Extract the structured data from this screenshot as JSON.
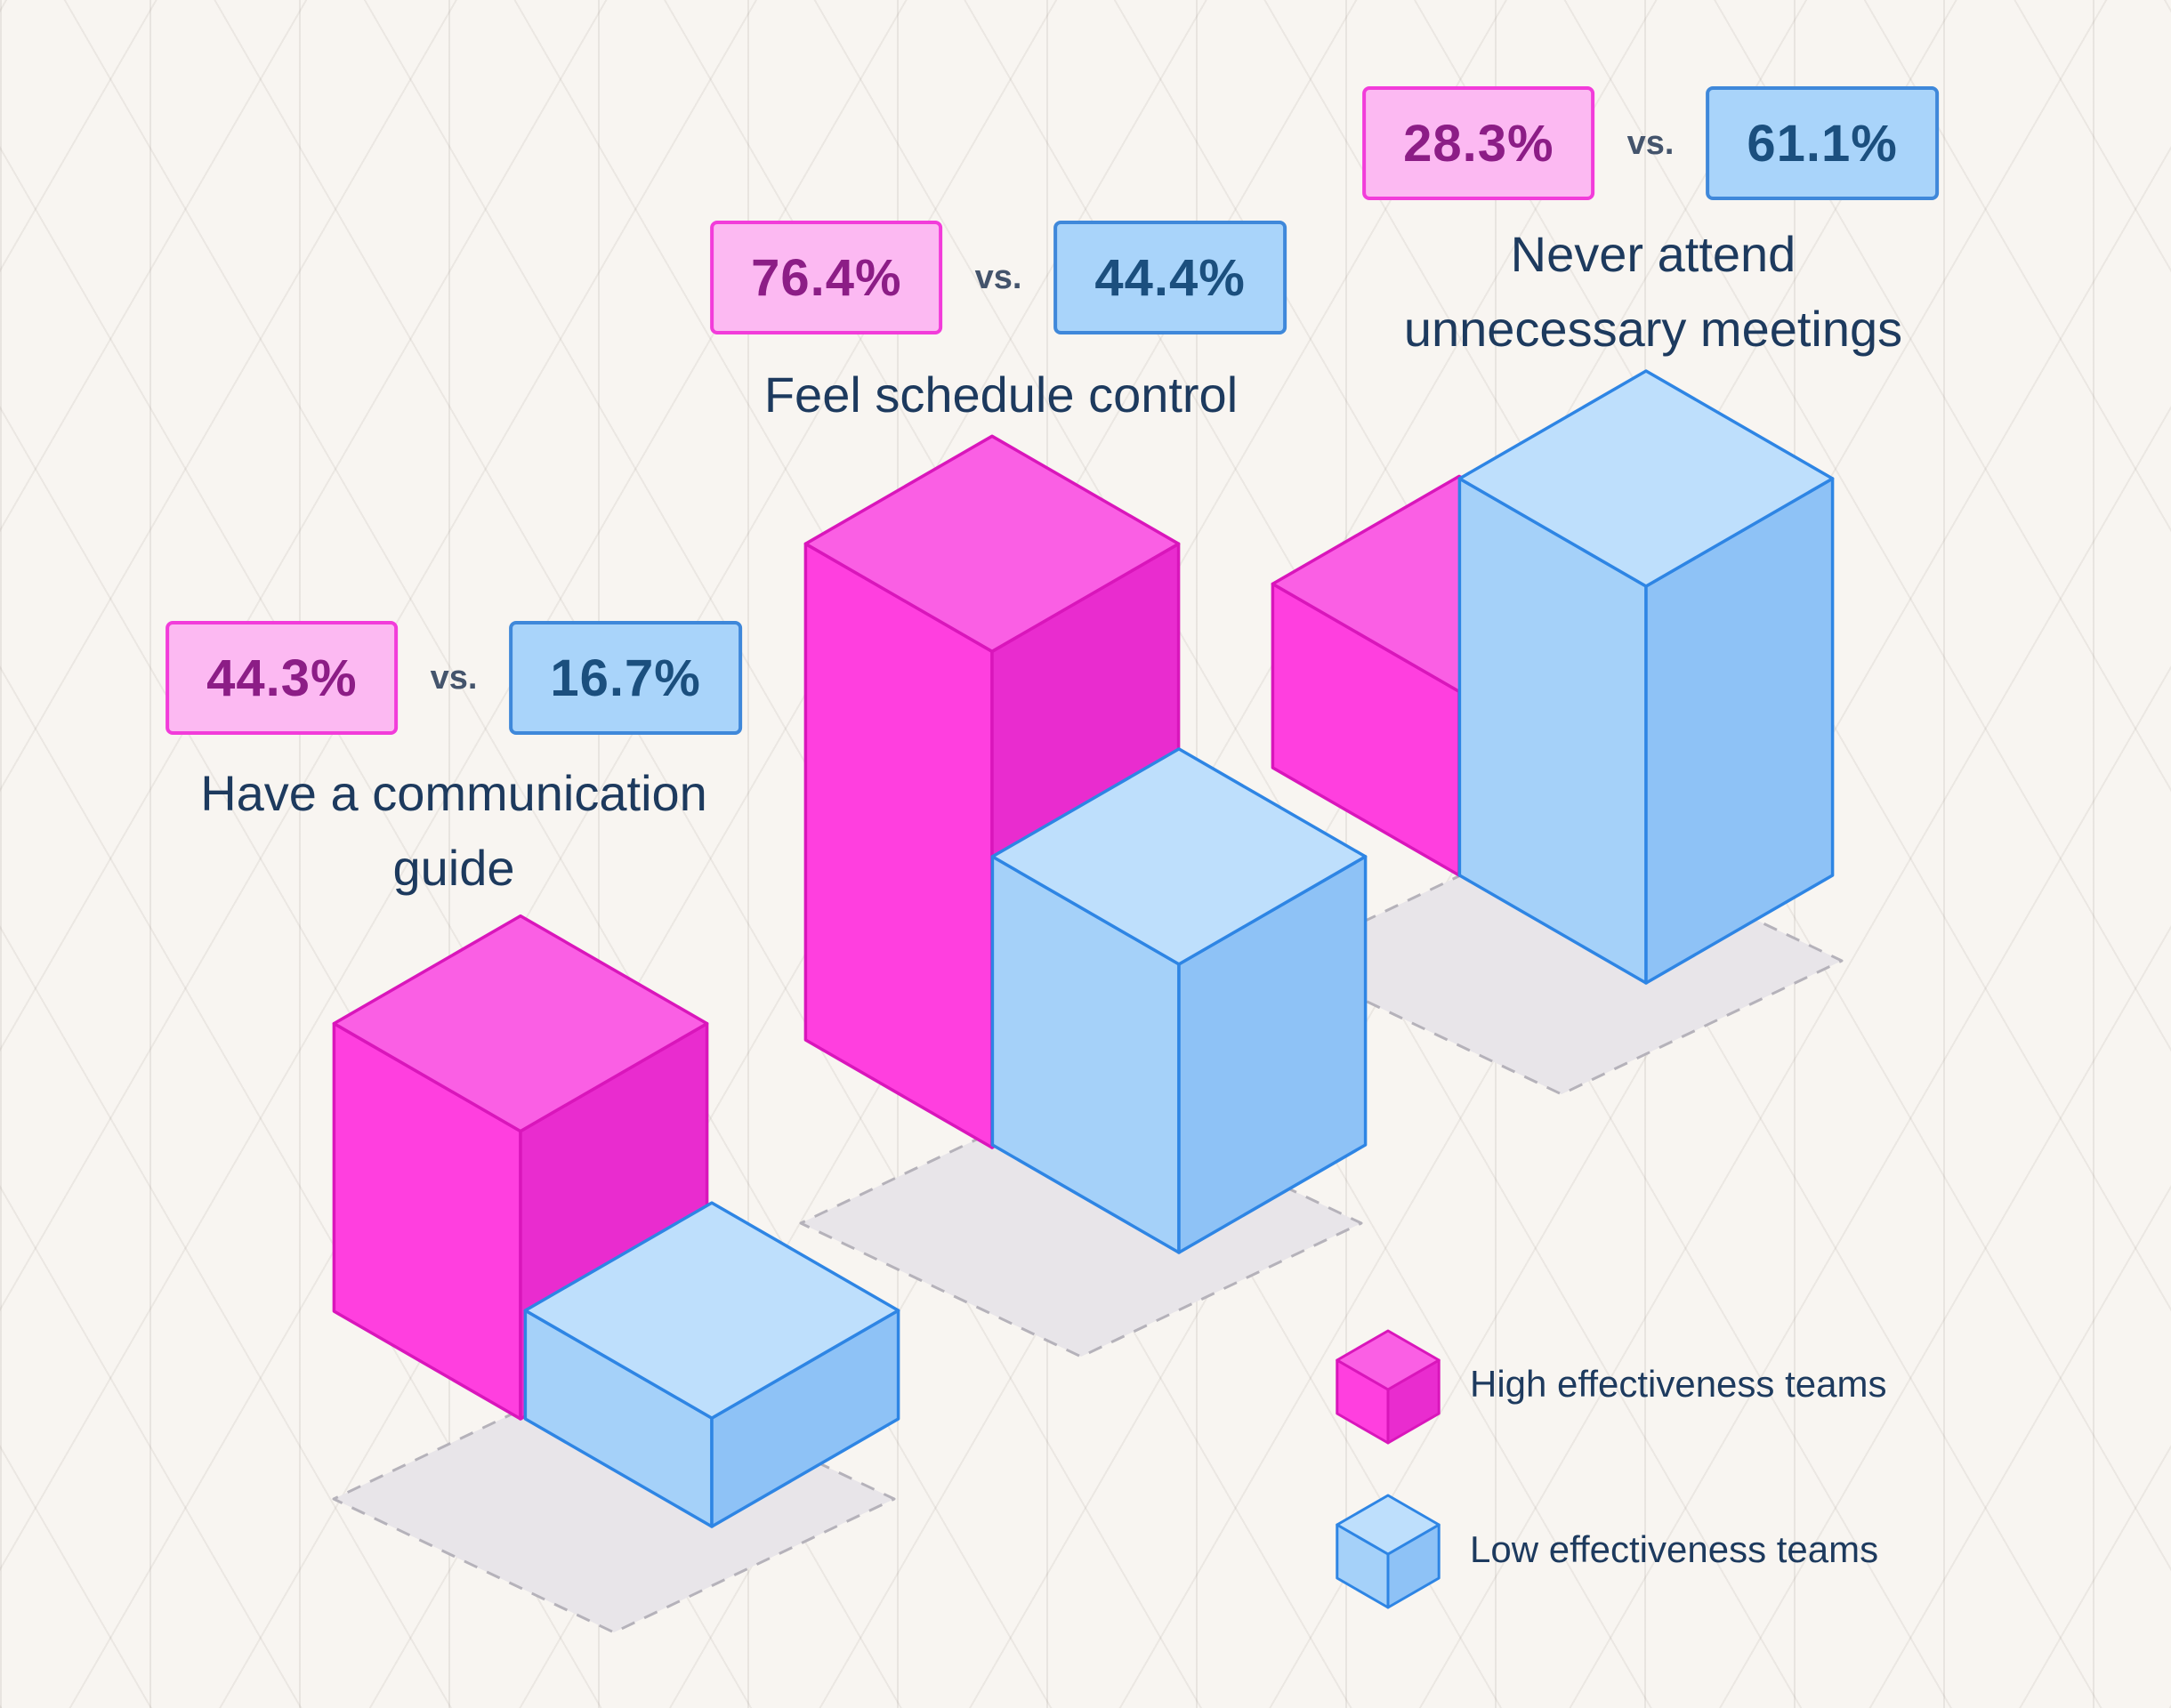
{
  "groups": [
    {
      "high_value": "44.3%",
      "vs": "vs.",
      "low_value": "16.7%",
      "label_lines": [
        "Have a communication",
        "guide"
      ]
    },
    {
      "high_value": "76.4%",
      "vs": "vs.",
      "low_value": "44.4%",
      "label_lines": [
        "Feel schedule control"
      ]
    },
    {
      "high_value": "28.3%",
      "vs": "vs.",
      "low_value": "61.1%",
      "label_lines": [
        "Never attend",
        "unnecessary meetings"
      ]
    }
  ],
  "legend": {
    "high": "High effectiveness teams",
    "low": "Low effectiveness teams"
  },
  "colors": {
    "badge_high_bg": "#fcb9f2",
    "badge_high_border": "#f23cda",
    "badge_high_text": "#8c1d86",
    "badge_low_bg": "#a9d4fa",
    "badge_low_border": "#3f88da",
    "badge_low_text": "#1b4f7e",
    "label_text": "#1d3a5e",
    "vs_text": "#44546c",
    "bar_high": {
      "top": "#fa5fe4",
      "left": "#ff3fdf",
      "right": "#e92ccf",
      "stroke": "#d916bb"
    },
    "bar_low": {
      "top": "#bedffc",
      "left": "#a5d1f9",
      "right": "#8ec2f6",
      "stroke": "#2e85e4"
    },
    "floor_fill": "#e8e5e9",
    "floor_stroke": "#b5b2ba"
  },
  "chart_data": {
    "type": "bar",
    "variant": "3d-isometric-columns",
    "unit": "percent",
    "categories": [
      "Have a communication guide",
      "Feel schedule control",
      "Never attend unnecessary meetings"
    ],
    "series": [
      {
        "name": "High effectiveness teams",
        "color": "#ff3fdf",
        "values": [
          44.3,
          76.4,
          28.3
        ]
      },
      {
        "name": "Low effectiveness teams",
        "color": "#a5d1f9",
        "values": [
          16.7,
          44.4,
          61.1
        ]
      }
    ],
    "value_labels": [
      [
        "44.3%",
        "16.7%"
      ],
      [
        "76.4%",
        "44.4%"
      ],
      [
        "28.3%",
        "61.1%"
      ]
    ],
    "vs_label": "vs.",
    "ylim": [
      0,
      100
    ],
    "legend_position": "bottom-right",
    "background": "isometric-triangle-grid"
  }
}
